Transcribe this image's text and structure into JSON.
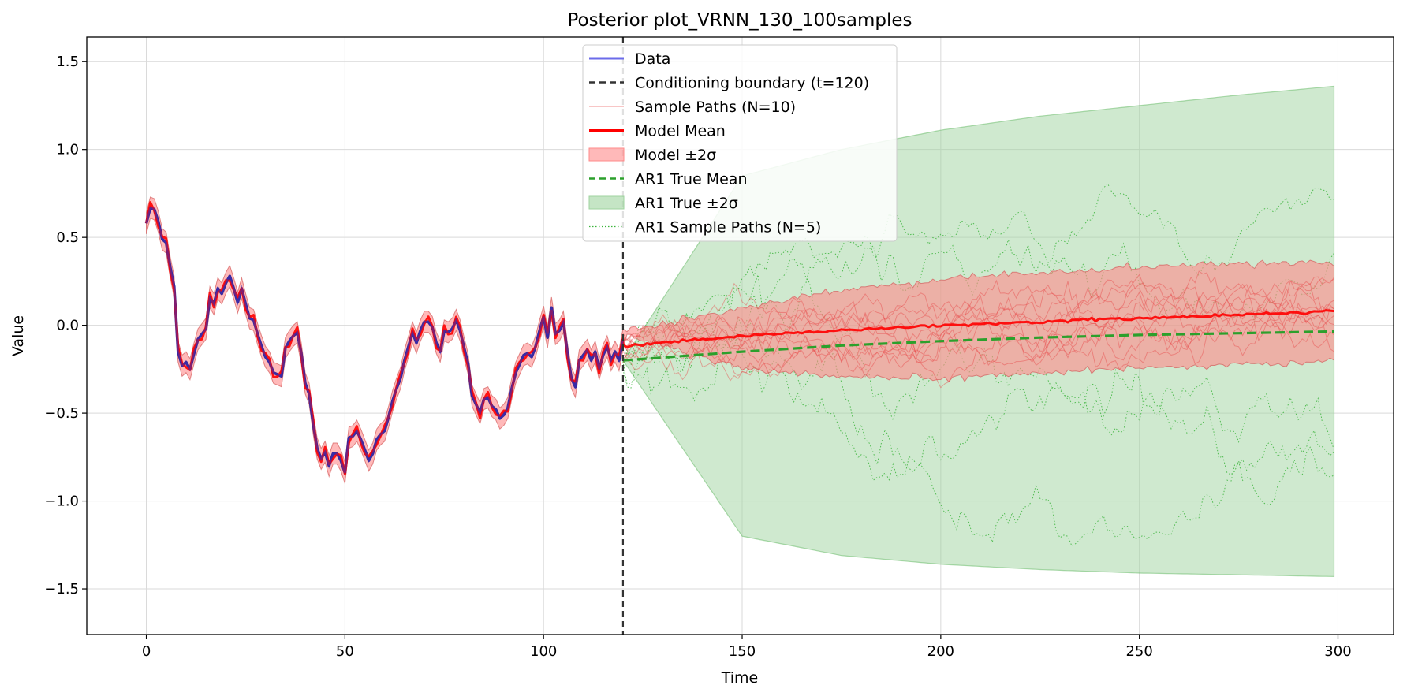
{
  "chart_data": {
    "type": "line",
    "title": "Posterior plot_VRNN_130_100samples",
    "xlabel": "Time",
    "ylabel": "Value",
    "xlim": [
      -15,
      314
    ],
    "ylim": [
      -1.76,
      1.64
    ],
    "xticks": [
      0,
      50,
      100,
      150,
      200,
      250,
      300
    ],
    "xtick_labels": [
      "0",
      "50",
      "100",
      "150",
      "200",
      "250",
      "300"
    ],
    "yticks": [
      -1.5,
      -1.0,
      -0.5,
      0.0,
      0.5,
      1.0,
      1.5
    ],
    "ytick_labels": [
      "−1.5",
      "−1.0",
      "−0.5",
      "0.0",
      "0.5",
      "1.0",
      "1.5"
    ],
    "grid": true,
    "legend_position": "top-center",
    "conditioning_boundary": 120,
    "legend": [
      {
        "key": "data",
        "label": "Data",
        "style": "line",
        "color": "#6b6bea"
      },
      {
        "key": "boundary",
        "label": "Conditioning boundary (t=120)",
        "style": "dashed",
        "color": "#333333"
      },
      {
        "key": "samples",
        "label": "Sample Paths (N=10)",
        "style": "thin",
        "color": "#f4a4a4"
      },
      {
        "key": "model_mean",
        "label": "Model Mean",
        "style": "line",
        "color": "#ff0000"
      },
      {
        "key": "model_band",
        "label": "Model ±2σ",
        "style": "patch",
        "color": "#ff8a8a"
      },
      {
        "key": "ar1_mean",
        "label": "AR1 True Mean",
        "style": "dashed",
        "color": "#2ca02c"
      },
      {
        "key": "ar1_band",
        "label": "AR1 True ±2σ",
        "style": "patch",
        "color": "#9fd39f"
      },
      {
        "key": "ar1_samples",
        "label": "AR1 Sample Paths (N=5)",
        "style": "dotted",
        "color": "#3cb43c"
      }
    ],
    "series": [
      {
        "name": "Data",
        "x_start": 0,
        "x_step": 1,
        "values": [
          0.58,
          0.67,
          0.66,
          0.59,
          0.49,
          0.47,
          0.33,
          0.22,
          -0.15,
          -0.23,
          -0.21,
          -0.25,
          -0.16,
          -0.08,
          -0.05,
          -0.02,
          0.16,
          0.12,
          0.21,
          0.18,
          0.24,
          0.28,
          0.21,
          0.13,
          0.21,
          0.12,
          0.04,
          0.03,
          -0.05,
          -0.12,
          -0.18,
          -0.21,
          -0.27,
          -0.28,
          -0.29,
          -0.13,
          -0.09,
          -0.06,
          -0.04,
          -0.16,
          -0.33,
          -0.39,
          -0.56,
          -0.7,
          -0.76,
          -0.72,
          -0.8,
          -0.73,
          -0.73,
          -0.77,
          -0.84,
          -0.64,
          -0.63,
          -0.6,
          -0.65,
          -0.71,
          -0.77,
          -0.73,
          -0.65,
          -0.62,
          -0.6,
          -0.52,
          -0.43,
          -0.36,
          -0.3,
          -0.2,
          -0.12,
          -0.04,
          -0.1,
          -0.03,
          0.02,
          0.02,
          -0.01,
          -0.1,
          -0.15,
          -0.03,
          -0.04,
          -0.02,
          0.03,
          -0.03,
          -0.13,
          -0.22,
          -0.4,
          -0.45,
          -0.5,
          -0.42,
          -0.41,
          -0.46,
          -0.48,
          -0.53,
          -0.51,
          -0.47,
          -0.36,
          -0.27,
          -0.22,
          -0.17,
          -0.16,
          -0.18,
          -0.12,
          -0.03,
          0.05,
          -0.07,
          0.1,
          -0.05,
          -0.03,
          0.02,
          -0.16,
          -0.3,
          -0.35,
          -0.2,
          -0.17,
          -0.14,
          -0.2,
          -0.15,
          -0.25,
          -0.17,
          -0.12,
          -0.2,
          -0.15,
          -0.2,
          -0.08
        ]
      },
      {
        "name": "Model Mean",
        "x": [
          0,
          10,
          20,
          30,
          40,
          50,
          60,
          70,
          80,
          90,
          100,
          110,
          119,
          120,
          130,
          150,
          175,
          200,
          225,
          250,
          275,
          299
        ],
        "values": [
          0.57,
          -0.22,
          0.22,
          -0.25,
          -0.72,
          -0.69,
          -0.45,
          0.02,
          -0.17,
          -0.43,
          0.02,
          -0.18,
          -0.1,
          -0.12,
          -0.1,
          -0.06,
          -0.03,
          0.0,
          0.02,
          0.04,
          0.06,
          0.08
        ]
      },
      {
        "name": "AR1 True Mean",
        "x": [
          120,
          150,
          175,
          200,
          225,
          250,
          275,
          299
        ],
        "values": [
          -0.2,
          -0.15,
          -0.115,
          -0.09,
          -0.07,
          -0.055,
          -0.045,
          -0.035
        ]
      }
    ],
    "bands": [
      {
        "name": "Model ±2σ",
        "x": [
          120,
          150,
          175,
          200,
          225,
          250,
          275,
          299
        ],
        "lower": [
          -0.05,
          -0.25,
          -0.29,
          -0.3,
          -0.27,
          -0.24,
          -0.22,
          -0.21
        ],
        "upper": [
          -0.03,
          0.1,
          0.2,
          0.26,
          0.3,
          0.33,
          0.35,
          0.35
        ]
      },
      {
        "name": "AR1 True ±2σ",
        "x": [
          120,
          150,
          175,
          200,
          225,
          250,
          275,
          299
        ],
        "lower": [
          -0.2,
          -1.2,
          -1.31,
          -1.36,
          -1.39,
          -1.41,
          -1.42,
          -1.43
        ],
        "upper": [
          -0.2,
          0.85,
          1.0,
          1.11,
          1.19,
          1.25,
          1.31,
          1.36
        ]
      }
    ]
  }
}
